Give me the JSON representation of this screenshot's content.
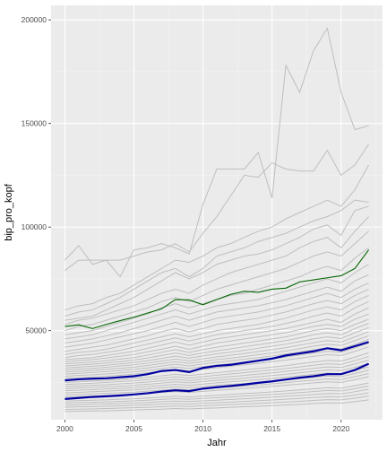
{
  "chart_data": {
    "type": "line",
    "title": "",
    "xlabel": "Jahr",
    "ylabel": "bip_pro_kopf",
    "xlim": [
      1999,
      2023
    ],
    "ylim": [
      7000,
      207000
    ],
    "x_ticks": [
      2000,
      2005,
      2010,
      2015,
      2020
    ],
    "y_ticks": [
      50000,
      100000,
      150000,
      200000
    ],
    "grid": true,
    "legend": "none",
    "colors": {
      "background": "#ebebeb",
      "grid_major": "#ffffff",
      "grid_minor": "#f4f4f4",
      "region_lines": "#bebebe",
      "upper_band": "#0000a0",
      "lower_band": "#0000a0",
      "highlight": "#006400"
    },
    "x": [
      2000,
      2001,
      2002,
      2003,
      2004,
      2005,
      2006,
      2007,
      2008,
      2009,
      2010,
      2011,
      2012,
      2013,
      2014,
      2015,
      2016,
      2017,
      2018,
      2019,
      2020,
      2021,
      2022
    ],
    "series": [
      {
        "role": "highlight",
        "values": [
          52000,
          52800,
          51000,
          53000,
          54800,
          56500,
          58500,
          60500,
          65000,
          64800,
          62500,
          65000,
          67500,
          69000,
          68500,
          70000,
          70500,
          73500,
          74500,
          75500,
          76500,
          80000,
          89000
        ]
      },
      {
        "role": "upper_band",
        "values": [
          26000,
          26500,
          26800,
          27000,
          27500,
          28000,
          29000,
          30500,
          31000,
          30000,
          32000,
          33000,
          33500,
          34500,
          35500,
          36500,
          38000,
          39000,
          40000,
          41500,
          40500,
          42500,
          44500
        ]
      },
      {
        "role": "lower_band",
        "values": [
          17000,
          17500,
          18000,
          18300,
          18700,
          19200,
          19800,
          20600,
          21200,
          20800,
          22000,
          22700,
          23300,
          24000,
          24800,
          25500,
          26400,
          27300,
          28000,
          29000,
          29000,
          31000,
          34000
        ]
      },
      {
        "role": "region",
        "values": [
          84000,
          91000,
          82000,
          84000,
          76000,
          89000,
          90000,
          92000,
          90000,
          87000,
          111000,
          128000,
          128000,
          128000,
          136000,
          114000,
          178000,
          165000,
          185000,
          196000,
          165000,
          147000,
          149000
        ]
      },
      {
        "role": "region",
        "values": [
          79000,
          84000,
          84000,
          84000,
          84000,
          86000,
          88000,
          89000,
          92000,
          88000,
          97000,
          105000,
          115000,
          125000,
          124000,
          131000,
          128000,
          127000,
          127000,
          137000,
          125000,
          130000,
          140000
        ]
      },
      {
        "role": "region",
        "values": [
          60000,
          62000,
          63000,
          66000,
          68000,
          72000,
          76000,
          80000,
          84000,
          83000,
          86000,
          90000,
          92000,
          95000,
          98000,
          100000,
          104000,
          107000,
          110000,
          113000,
          110000,
          118000,
          130000
        ]
      },
      {
        "role": "region",
        "values": [
          57000,
          59000,
          60000,
          63000,
          66000,
          70000,
          74000,
          78000,
          80000,
          76000,
          80000,
          86000,
          88000,
          90000,
          93000,
          95000,
          97000,
          100000,
          103000,
          105000,
          108000,
          113000,
          112000
        ]
      },
      {
        "role": "region",
        "values": [
          55000,
          56000,
          57000,
          60000,
          63000,
          66000,
          70000,
          74000,
          78000,
          75000,
          78000,
          82000,
          84000,
          86000,
          87000,
          89000,
          92000,
          95000,
          99000,
          101000,
          96000,
          108000,
          110000
        ]
      },
      {
        "role": "region",
        "values": [
          53000,
          55000,
          56000,
          58000,
          60000,
          62000,
          65000,
          68000,
          70000,
          68000,
          72000,
          75000,
          78000,
          80000,
          82000,
          84000,
          86000,
          90000,
          93000,
          95000,
          90000,
          98000,
          105000
        ]
      },
      {
        "role": "region",
        "values": [
          50000,
          52000,
          53000,
          55000,
          57000,
          59000,
          61000,
          64000,
          66000,
          64000,
          67000,
          70000,
          72000,
          74000,
          76000,
          78000,
          80000,
          83000,
          86000,
          88000,
          86000,
          92000,
          98000
        ]
      },
      {
        "role": "region",
        "values": [
          48000,
          49000,
          50000,
          52000,
          54000,
          56000,
          58000,
          61000,
          63000,
          61000,
          63000,
          65000,
          67000,
          68000,
          70000,
          72000,
          74000,
          76000,
          79000,
          81000,
          79000,
          85000,
          90000
        ]
      },
      {
        "role": "region",
        "values": [
          46000,
          47000,
          48000,
          50000,
          52000,
          54000,
          56000,
          58000,
          60000,
          58000,
          60000,
          62000,
          63000,
          64000,
          65000,
          67000,
          69000,
          71000,
          73000,
          75000,
          73000,
          78000,
          82000
        ]
      },
      {
        "role": "region",
        "values": [
          44000,
          45000,
          46000,
          47500,
          49000,
          51000,
          53000,
          55000,
          57000,
          55000,
          57000,
          59000,
          60000,
          61000,
          62000,
          63500,
          65000,
          67000,
          69000,
          71000,
          69000,
          74000,
          77000
        ]
      },
      {
        "role": "region",
        "values": [
          42000,
          43000,
          44000,
          45500,
          47000,
          48500,
          50000,
          52000,
          54000,
          52000,
          54000,
          56000,
          57000,
          58000,
          59000,
          60500,
          62000,
          64000,
          66000,
          68000,
          66000,
          70000,
          73000
        ]
      },
      {
        "role": "region",
        "values": [
          40000,
          41000,
          42000,
          43000,
          44500,
          46000,
          47500,
          49500,
          51000,
          49500,
          51000,
          53000,
          54000,
          55000,
          56000,
          57500,
          59000,
          61000,
          63000,
          64500,
          63000,
          67000,
          70000
        ]
      },
      {
        "role": "region",
        "values": [
          38500,
          39500,
          40000,
          41000,
          42500,
          44000,
          45500,
          47000,
          48500,
          47000,
          48500,
          50000,
          51000,
          52000,
          53000,
          54500,
          56000,
          58000,
          60000,
          61500,
          60000,
          64000,
          67000
        ]
      },
      {
        "role": "region",
        "values": [
          37000,
          38000,
          38500,
          39500,
          40500,
          42000,
          43500,
          45000,
          46500,
          45000,
          46500,
          48000,
          49000,
          50000,
          51000,
          52000,
          53500,
          55000,
          57000,
          58500,
          57000,
          61000,
          64000
        ]
      },
      {
        "role": "region",
        "values": [
          36000,
          36500,
          37000,
          38000,
          39000,
          40000,
          41500,
          43000,
          44500,
          43000,
          44500,
          46000,
          47000,
          48000,
          49000,
          50000,
          51000,
          52500,
          54000,
          55500,
          54000,
          58000,
          61000
        ]
      },
      {
        "role": "region",
        "values": [
          35000,
          35500,
          36000,
          36800,
          37600,
          38500,
          39800,
          41000,
          42500,
          41000,
          42500,
          44000,
          45000,
          46000,
          47000,
          48000,
          49000,
          50500,
          52000,
          53000,
          52000,
          55500,
          58000
        ]
      },
      {
        "role": "region",
        "values": [
          34000,
          34400,
          34800,
          35500,
          36200,
          37000,
          38200,
          39500,
          40800,
          39500,
          40800,
          42000,
          43000,
          44000,
          45000,
          46000,
          47000,
          48500,
          50000,
          51000,
          50000,
          53000,
          55500
        ]
      },
      {
        "role": "region",
        "values": [
          33000,
          33400,
          33800,
          34400,
          35000,
          35800,
          36800,
          38000,
          39200,
          38000,
          39200,
          40300,
          41200,
          42200,
          43200,
          44200,
          45200,
          46500,
          48000,
          49000,
          48000,
          51000,
          53500
        ]
      },
      {
        "role": "region",
        "values": [
          32000,
          32400,
          32800,
          33300,
          33900,
          34600,
          35500,
          36600,
          37700,
          36700,
          37800,
          38800,
          39600,
          40500,
          41500,
          42500,
          43500,
          44700,
          46000,
          47000,
          46200,
          49000,
          51500
        ]
      },
      {
        "role": "region",
        "values": [
          31000,
          31400,
          31800,
          32300,
          32900,
          33500,
          34300,
          35300,
          36300,
          35400,
          36400,
          37300,
          38100,
          39000,
          39900,
          40800,
          41800,
          43000,
          44200,
          45200,
          44500,
          47000,
          49500
        ]
      },
      {
        "role": "region",
        "values": [
          30000,
          30400,
          30800,
          31300,
          31800,
          32400,
          33200,
          34100,
          35000,
          34200,
          35100,
          36000,
          36700,
          37500,
          38400,
          39200,
          40200,
          41300,
          42500,
          43400,
          42800,
          45200,
          47500
        ]
      },
      {
        "role": "region",
        "values": [
          29000,
          29400,
          29800,
          30200,
          30700,
          31300,
          32000,
          32900,
          33800,
          33000,
          33900,
          34700,
          35400,
          36200,
          37000,
          37800,
          38700,
          39700,
          40800,
          41700,
          41200,
          43400,
          45800
        ]
      },
      {
        "role": "region",
        "values": [
          28000,
          28400,
          28700,
          29100,
          29600,
          30100,
          30800,
          31600,
          32500,
          31800,
          32600,
          33400,
          34100,
          34800,
          35600,
          36400,
          37200,
          38200,
          39200,
          40000,
          39600,
          41700,
          44000
        ]
      },
      {
        "role": "region",
        "values": [
          27000,
          27300,
          27600,
          28000,
          28500,
          29000,
          29700,
          30400,
          31200,
          30600,
          31400,
          32100,
          32800,
          33500,
          34200,
          35000,
          35800,
          36700,
          37600,
          38400,
          38000,
          40000,
          42200
        ]
      },
      {
        "role": "region",
        "values": [
          25000,
          25300,
          25600,
          26000,
          26400,
          26900,
          27500,
          28200,
          28900,
          28300,
          29000,
          29700,
          30300,
          31000,
          31700,
          32400,
          33100,
          34000,
          34800,
          35600,
          35300,
          37200,
          39300
        ]
      },
      {
        "role": "region",
        "values": [
          24000,
          24300,
          24600,
          25000,
          25400,
          25800,
          26400,
          27000,
          27700,
          27100,
          27800,
          28500,
          29100,
          29700,
          30400,
          31000,
          31700,
          32500,
          33300,
          34000,
          33700,
          35500,
          37500
        ]
      },
      {
        "role": "region",
        "values": [
          23000,
          23300,
          23600,
          23900,
          24300,
          24700,
          25200,
          25800,
          26500,
          25900,
          26600,
          27200,
          27800,
          28400,
          29000,
          29600,
          30300,
          31000,
          31800,
          32500,
          32200,
          33900,
          35800
        ]
      },
      {
        "role": "region",
        "values": [
          22000,
          22300,
          22600,
          22900,
          23200,
          23600,
          24100,
          24700,
          25300,
          24800,
          25400,
          26000,
          26500,
          27100,
          27700,
          28300,
          28900,
          29600,
          30300,
          31000,
          30700,
          32300,
          34100
        ]
      },
      {
        "role": "region",
        "values": [
          21000,
          21300,
          21500,
          21800,
          22100,
          22500,
          23000,
          23500,
          24100,
          23600,
          24200,
          24800,
          25300,
          25800,
          26400,
          26900,
          27500,
          28200,
          28900,
          29500,
          29200,
          30800,
          32500
        ]
      },
      {
        "role": "region",
        "values": [
          20000,
          20200,
          20500,
          20800,
          21100,
          21400,
          21900,
          22400,
          22900,
          22500,
          23000,
          23600,
          24000,
          24500,
          25100,
          25600,
          26200,
          26800,
          27500,
          28100,
          27800,
          29300,
          30900
        ]
      },
      {
        "role": "region",
        "values": [
          19000,
          19200,
          19500,
          19700,
          20000,
          20300,
          20800,
          21300,
          21800,
          21400,
          21900,
          22400,
          22800,
          23300,
          23800,
          24300,
          24900,
          25500,
          26100,
          26700,
          26400,
          27800,
          29300
        ]
      },
      {
        "role": "region",
        "values": [
          18000,
          18200,
          18400,
          18700,
          19000,
          19300,
          19700,
          20200,
          20600,
          20200,
          20700,
          21200,
          21600,
          22100,
          22600,
          23100,
          23600,
          24200,
          24800,
          25300,
          25000,
          26300,
          27800
        ]
      },
      {
        "role": "region",
        "values": [
          16000,
          16200,
          16400,
          16600,
          16900,
          17100,
          17500,
          17900,
          18300,
          18000,
          18400,
          18800,
          19200,
          19600,
          20000,
          20400,
          20900,
          21400,
          21900,
          22400,
          22200,
          23400,
          24800
        ]
      },
      {
        "role": "region",
        "values": [
          15000,
          15200,
          15400,
          15600,
          15800,
          16100,
          16400,
          16800,
          17200,
          16900,
          17300,
          17600,
          18000,
          18400,
          18800,
          19200,
          19600,
          20100,
          20600,
          21100,
          20900,
          22000,
          23300
        ]
      },
      {
        "role": "region",
        "values": [
          14000,
          14200,
          14400,
          14600,
          14800,
          15000,
          15300,
          15700,
          16000,
          15800,
          16100,
          16400,
          16800,
          17100,
          17500,
          17900,
          18300,
          18700,
          19200,
          19600,
          19500,
          20500,
          21700
        ]
      },
      {
        "role": "region",
        "values": [
          13000,
          13200,
          13300,
          13500,
          13700,
          13900,
          14200,
          14500,
          14800,
          14600,
          14900,
          15200,
          15500,
          15800,
          16200,
          16500,
          16900,
          17300,
          17700,
          18100,
          18000,
          18900,
          20000
        ]
      },
      {
        "role": "region",
        "values": [
          12000,
          12100,
          12200,
          12400,
          12600,
          12800,
          13000,
          13300,
          13600,
          13400,
          13700,
          14000,
          14300,
          14600,
          14900,
          15200,
          15500,
          15900,
          16300,
          16700,
          16600,
          17400,
          18400
        ]
      },
      {
        "role": "region",
        "values": [
          11000,
          11100,
          11200,
          11300,
          11500,
          11700,
          11900,
          12100,
          12400,
          12200,
          12500,
          12700,
          13000,
          13300,
          13500,
          13800,
          14100,
          14400,
          14800,
          15100,
          15000,
          15700,
          16600
        ]
      }
    ]
  }
}
